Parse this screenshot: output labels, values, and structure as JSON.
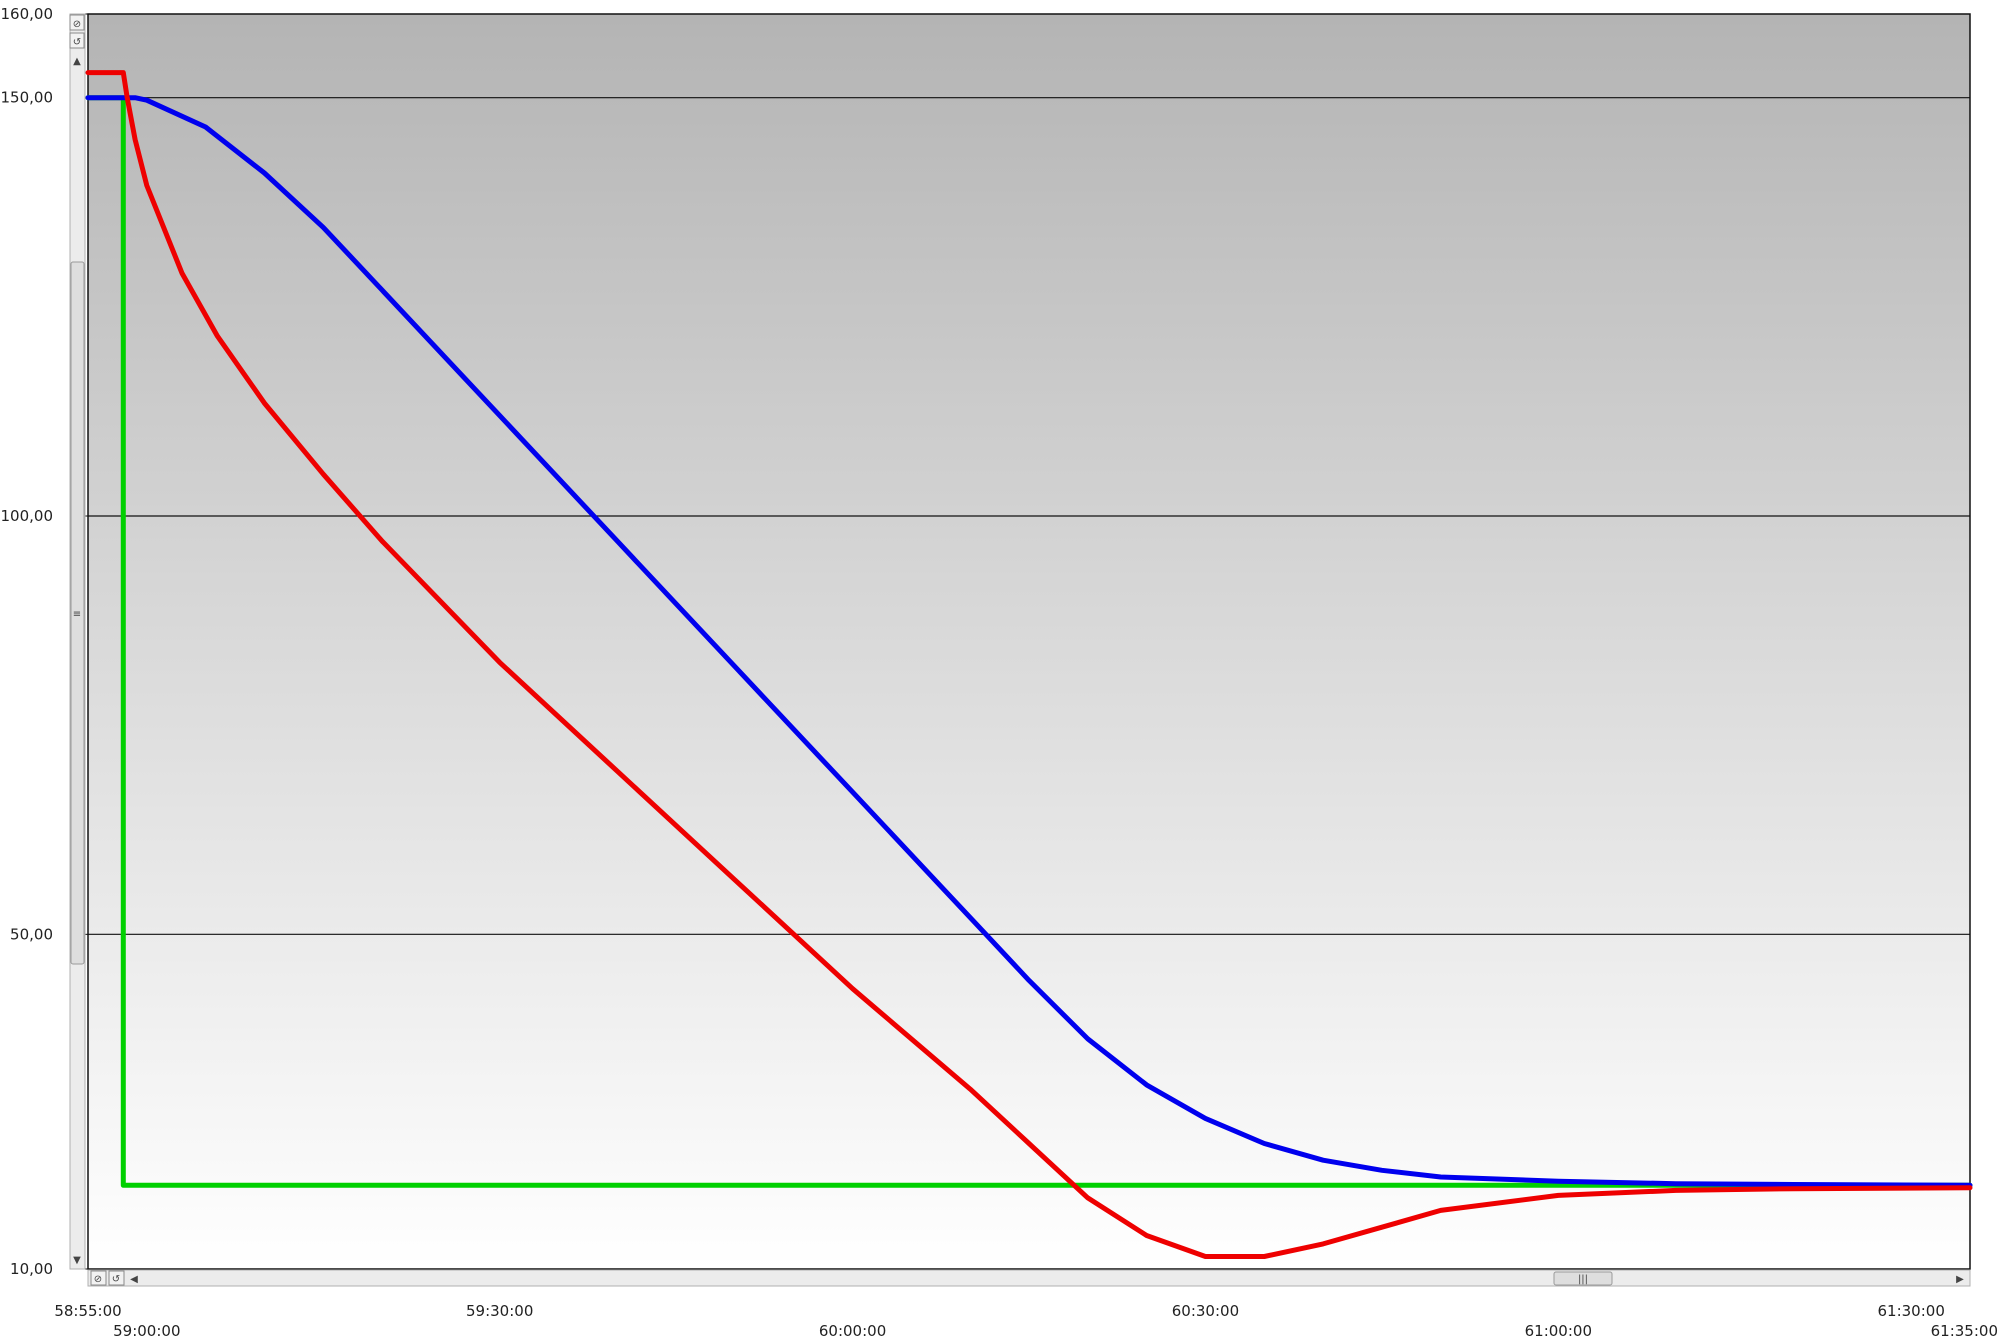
{
  "chart_data": {
    "type": "line",
    "title": "",
    "xlabel": "",
    "ylabel": "",
    "x_unit": "mm:ss",
    "xlim": [
      "58:55:00",
      "61:35:00"
    ],
    "ylim": [
      10,
      160
    ],
    "grid": true,
    "legend": "none",
    "background": {
      "top": "#b4b4b4",
      "bottom": "#ffffff"
    },
    "y_ticks": [
      {
        "value": 160,
        "label": "160,00"
      },
      {
        "value": 150,
        "label": "150,00"
      },
      {
        "value": 100,
        "label": "100,00"
      },
      {
        "value": 50,
        "label": "50,00"
      },
      {
        "value": 10,
        "label": "10,00"
      }
    ],
    "y_gridlines": [
      150,
      100,
      50
    ],
    "x_ticks": [
      {
        "value": "58:55:00",
        "label": "58:55:00",
        "row": 1
      },
      {
        "value": "59:00:00",
        "label": "59:00:00",
        "row": 2
      },
      {
        "value": "59:30:00",
        "label": "59:30:00",
        "row": 1
      },
      {
        "value": "60:00:00",
        "label": "60:00:00",
        "row": 2
      },
      {
        "value": "60:30:00",
        "label": "60:30:00",
        "row": 1
      },
      {
        "value": "61:00:00",
        "label": "61:00:00",
        "row": 2
      },
      {
        "value": "61:30:00",
        "label": "61:30:00",
        "row": 1
      },
      {
        "value": "61:35:00",
        "label": "61:35:00",
        "row": 2
      }
    ],
    "series": [
      {
        "color": "#00d000",
        "points": [
          [
            "58:55:00",
            150
          ],
          [
            "58:58:00",
            150
          ],
          [
            "58:58:00",
            20
          ],
          [
            "61:35:00",
            20
          ]
        ]
      },
      {
        "color": "#0000ee",
        "points": [
          [
            "58:55:00",
            150
          ],
          [
            "58:59:00",
            150
          ],
          [
            "59:00:00",
            149.7
          ],
          [
            "59:05:00",
            146.5
          ],
          [
            "59:10:00",
            141
          ],
          [
            "59:15:00",
            134.5
          ],
          [
            "59:20:00",
            127
          ],
          [
            "59:30:00",
            112
          ],
          [
            "59:40:00",
            97
          ],
          [
            "59:50:00",
            82
          ],
          [
            "60:00:00",
            67
          ],
          [
            "60:10:00",
            52
          ],
          [
            "60:15:00",
            44.5
          ],
          [
            "60:20:00",
            37.5
          ],
          [
            "60:25:00",
            32
          ],
          [
            "60:30:00",
            28
          ],
          [
            "60:35:00",
            25
          ],
          [
            "60:40:00",
            23
          ],
          [
            "60:45:00",
            21.8
          ],
          [
            "60:50:00",
            21
          ],
          [
            "61:00:00",
            20.5
          ],
          [
            "61:10:00",
            20.2
          ],
          [
            "61:20:00",
            20.1
          ],
          [
            "61:35:00",
            20
          ]
        ]
      },
      {
        "color": "#ee0000",
        "points": [
          [
            "58:55:00",
            153
          ],
          [
            "58:58:00",
            153
          ],
          [
            "58:58:20",
            150
          ],
          [
            "58:59:00",
            145
          ],
          [
            "59:00:00",
            139.5
          ],
          [
            "59:03:00",
            129
          ],
          [
            "59:06:00",
            121.5
          ],
          [
            "59:10:00",
            113.5
          ],
          [
            "59:15:00",
            105
          ],
          [
            "59:20:00",
            97
          ],
          [
            "59:30:00",
            82.5
          ],
          [
            "59:40:00",
            69.5
          ],
          [
            "59:50:00",
            56.5
          ],
          [
            "60:00:00",
            43.5
          ],
          [
            "60:10:00",
            31.5
          ],
          [
            "60:15:00",
            25
          ],
          [
            "60:20:00",
            18.5
          ],
          [
            "60:25:00",
            14
          ],
          [
            "60:30:00",
            11.5
          ],
          [
            "60:35:00",
            11.5
          ],
          [
            "60:40:00",
            13
          ],
          [
            "60:45:00",
            15
          ],
          [
            "60:50:00",
            17
          ],
          [
            "61:00:00",
            18.8
          ],
          [
            "61:10:00",
            19.4
          ],
          [
            "61:20:00",
            19.6
          ],
          [
            "61:35:00",
            19.7
          ]
        ]
      }
    ]
  },
  "controls": {
    "y_scrollbar_thumb": "≡",
    "x_scrollbar_thumb": "|||"
  }
}
